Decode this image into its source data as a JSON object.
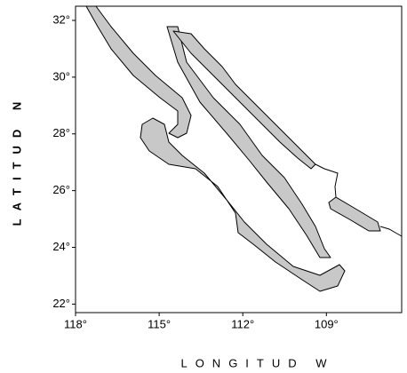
{
  "chart_data": {
    "type": "map",
    "xlabel": "LONGITUD W",
    "ylabel": "LATITUD N",
    "xlim": [
      118,
      106.3
    ],
    "ylim": [
      21.7,
      32.5
    ],
    "xticks": [
      {
        "value": 118,
        "label": "118°"
      },
      {
        "value": 115,
        "label": "115°"
      },
      {
        "value": 112,
        "label": "112°"
      },
      {
        "value": 109,
        "label": "109°"
      }
    ],
    "yticks": [
      {
        "value": 22,
        "label": "22°"
      },
      {
        "value": 24,
        "label": "24°"
      },
      {
        "value": 26,
        "label": "26°"
      },
      {
        "value": 28,
        "label": "28°"
      },
      {
        "value": 30,
        "label": "30°"
      },
      {
        "value": 32,
        "label": "32°"
      }
    ]
  }
}
